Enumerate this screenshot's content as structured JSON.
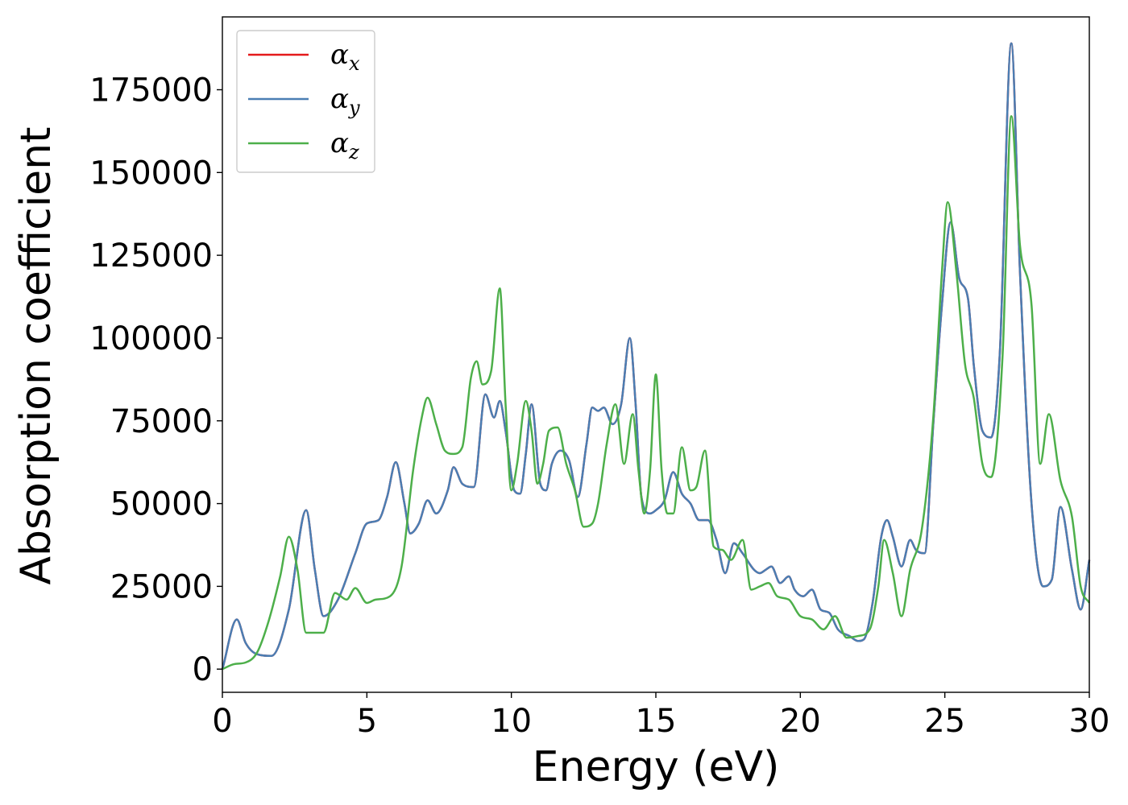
{
  "chart_data": {
    "type": "line",
    "title": "",
    "xlabel": "Energy (eV)",
    "ylabel": "Absorption coefficient",
    "xlim": [
      0,
      30
    ],
    "ylim": [
      -7000,
      197000
    ],
    "xticks": [
      0,
      5,
      10,
      15,
      20,
      25,
      30
    ],
    "yticks": [
      0,
      25000,
      50000,
      75000,
      100000,
      125000,
      150000,
      175000
    ],
    "grid": false,
    "legend_position": "top-left",
    "series": [
      {
        "name": "α_x",
        "symbol": "α",
        "sub": "x",
        "color": "#e41a1c",
        "x": [
          0,
          0.5,
          0.8,
          1.2,
          1.7,
          2.3,
          2.9,
          3.2,
          3.5,
          4.0,
          4.6,
          5.0,
          5.4,
          5.7,
          6.0,
          6.3,
          6.5,
          6.8,
          7.1,
          7.4,
          7.8,
          8.0,
          8.3,
          8.7,
          9.1,
          9.4,
          9.6,
          9.8,
          10.1,
          10.3,
          10.5,
          10.7,
          11.0,
          11.2,
          11.4,
          11.7,
          12.0,
          12.3,
          12.6,
          12.8,
          13.0,
          13.2,
          13.5,
          13.8,
          14.1,
          14.3,
          14.5,
          14.8,
          15.0,
          15.3,
          15.6,
          15.9,
          16.2,
          16.5,
          16.8,
          17.1,
          17.4,
          17.7,
          18.0,
          18.4,
          18.6,
          18.8,
          19.0,
          19.3,
          19.6,
          19.8,
          20.1,
          20.4,
          20.7,
          21.0,
          21.3,
          21.7,
          22.0,
          22.2,
          22.5,
          22.8,
          23.0,
          23.2,
          23.5,
          23.8,
          24.0,
          24.3,
          24.6,
          24.9,
          25.2,
          25.5,
          25.8,
          26.0,
          26.3,
          26.6,
          26.9,
          27.3,
          27.6,
          28.0,
          28.4,
          28.7,
          29.0,
          29.4,
          29.7,
          30.0
        ],
        "values": [
          0,
          15000,
          8000,
          4500,
          4000,
          18000,
          48000,
          30000,
          16000,
          21000,
          35000,
          44000,
          45000,
          52000,
          62500,
          50000,
          41000,
          44000,
          51000,
          47000,
          54000,
          61000,
          56000,
          55000,
          83000,
          76000,
          81000,
          72000,
          54000,
          53000,
          65000,
          80000,
          56000,
          54000,
          62000,
          66000,
          63000,
          52000,
          68000,
          79000,
          78000,
          79000,
          74000,
          80000,
          100000,
          80000,
          52000,
          47000,
          48000,
          51000,
          59500,
          53000,
          50000,
          45000,
          45000,
          39000,
          29000,
          38000,
          35000,
          30000,
          29000,
          30000,
          31000,
          26000,
          28000,
          24000,
          22000,
          24000,
          18000,
          17000,
          12000,
          10000,
          8500,
          9000,
          20000,
          40000,
          45000,
          40000,
          31000,
          39000,
          36000,
          35000,
          74000,
          110000,
          135000,
          118000,
          112000,
          92000,
          72000,
          70000,
          95000,
          189000,
          120000,
          50000,
          25000,
          27000,
          49000,
          30000,
          18000,
          33000
        ]
      },
      {
        "name": "α_y",
        "symbol": "α",
        "sub": "y",
        "color": "#4a7eb3",
        "x": [
          0,
          0.5,
          0.8,
          1.2,
          1.7,
          2.3,
          2.9,
          3.2,
          3.5,
          4.0,
          4.6,
          5.0,
          5.4,
          5.7,
          6.0,
          6.3,
          6.5,
          6.8,
          7.1,
          7.4,
          7.8,
          8.0,
          8.3,
          8.7,
          9.1,
          9.4,
          9.6,
          9.8,
          10.1,
          10.3,
          10.5,
          10.7,
          11.0,
          11.2,
          11.4,
          11.7,
          12.0,
          12.3,
          12.6,
          12.8,
          13.0,
          13.2,
          13.5,
          13.8,
          14.1,
          14.3,
          14.5,
          14.8,
          15.0,
          15.3,
          15.6,
          15.9,
          16.2,
          16.5,
          16.8,
          17.1,
          17.4,
          17.7,
          18.0,
          18.4,
          18.6,
          18.8,
          19.0,
          19.3,
          19.6,
          19.8,
          20.1,
          20.4,
          20.7,
          21.0,
          21.3,
          21.7,
          22.0,
          22.2,
          22.5,
          22.8,
          23.0,
          23.2,
          23.5,
          23.8,
          24.0,
          24.3,
          24.6,
          24.9,
          25.2,
          25.5,
          25.8,
          26.0,
          26.3,
          26.6,
          26.9,
          27.3,
          27.6,
          28.0,
          28.4,
          28.7,
          29.0,
          29.4,
          29.7,
          30.0
        ],
        "values": [
          0,
          15000,
          8000,
          4500,
          4000,
          18000,
          48000,
          30000,
          16000,
          21000,
          35000,
          44000,
          45000,
          52000,
          62500,
          50000,
          41000,
          44000,
          51000,
          47000,
          54000,
          61000,
          56000,
          55000,
          83000,
          76000,
          81000,
          72000,
          54000,
          53000,
          65000,
          80000,
          56000,
          54000,
          62000,
          66000,
          63000,
          52000,
          68000,
          79000,
          78000,
          79000,
          74000,
          80000,
          100000,
          80000,
          52000,
          47000,
          48000,
          51000,
          59500,
          53000,
          50000,
          45000,
          45000,
          39000,
          29000,
          38000,
          35000,
          30000,
          29000,
          30000,
          31000,
          26000,
          28000,
          24000,
          22000,
          24000,
          18000,
          17000,
          12000,
          10000,
          8500,
          9000,
          20000,
          40000,
          45000,
          40000,
          31000,
          39000,
          36000,
          35000,
          74000,
          110000,
          135000,
          118000,
          112000,
          92000,
          72000,
          70000,
          95000,
          189000,
          120000,
          50000,
          25000,
          27000,
          49000,
          30000,
          18000,
          33000
        ]
      },
      {
        "name": "α_z",
        "symbol": "α",
        "sub": "z",
        "color": "#4daf4a",
        "x": [
          0,
          0.4,
          0.8,
          1.2,
          1.6,
          2.0,
          2.3,
          2.6,
          2.9,
          3.2,
          3.5,
          3.9,
          4.3,
          4.6,
          5.0,
          5.3,
          5.8,
          6.2,
          6.6,
          6.9,
          7.1,
          7.4,
          7.7,
          8.0,
          8.3,
          8.6,
          8.8,
          9.0,
          9.3,
          9.6,
          9.8,
          10.0,
          10.2,
          10.5,
          10.7,
          10.9,
          11.1,
          11.3,
          11.6,
          11.9,
          12.2,
          12.5,
          12.8,
          13.0,
          13.3,
          13.6,
          13.9,
          14.2,
          14.4,
          14.6,
          14.8,
          15.0,
          15.2,
          15.4,
          15.6,
          15.9,
          16.2,
          16.4,
          16.7,
          17.0,
          17.3,
          17.6,
          18.0,
          18.3,
          18.6,
          18.9,
          19.2,
          19.6,
          20.0,
          20.4,
          20.8,
          21.2,
          21.6,
          22.0,
          22.4,
          22.7,
          22.9,
          23.2,
          23.5,
          23.8,
          24.2,
          24.6,
          24.9,
          25.1,
          25.4,
          25.7,
          26.0,
          26.3,
          26.6,
          27.0,
          27.3,
          27.6,
          28.0,
          28.3,
          28.6,
          29.0,
          29.4,
          29.7,
          30.0
        ],
        "values": [
          0,
          1500,
          2000,
          5000,
          14500,
          28000,
          40000,
          30000,
          11000,
          11000,
          11000,
          23000,
          21000,
          24500,
          20000,
          21000,
          22000,
          31000,
          60000,
          76000,
          82000,
          74000,
          66000,
          65000,
          67000,
          88000,
          93000,
          86000,
          90000,
          115000,
          80000,
          54000,
          62000,
          81000,
          72000,
          56000,
          62000,
          72000,
          73000,
          62000,
          54000,
          43000,
          44000,
          50000,
          68000,
          80000,
          62000,
          77000,
          60000,
          47000,
          60000,
          89000,
          60000,
          47000,
          47000,
          67000,
          54000,
          55000,
          66000,
          37000,
          36000,
          33000,
          39000,
          24000,
          25000,
          26000,
          22000,
          21000,
          16000,
          15000,
          12000,
          16000,
          9500,
          10000,
          12000,
          25000,
          39000,
          29000,
          16000,
          30000,
          42000,
          76000,
          120000,
          141000,
          120000,
          92000,
          82000,
          62000,
          58000,
          95000,
          167000,
          128000,
          110000,
          62000,
          77000,
          57000,
          46000,
          25000,
          20000
        ]
      }
    ]
  }
}
